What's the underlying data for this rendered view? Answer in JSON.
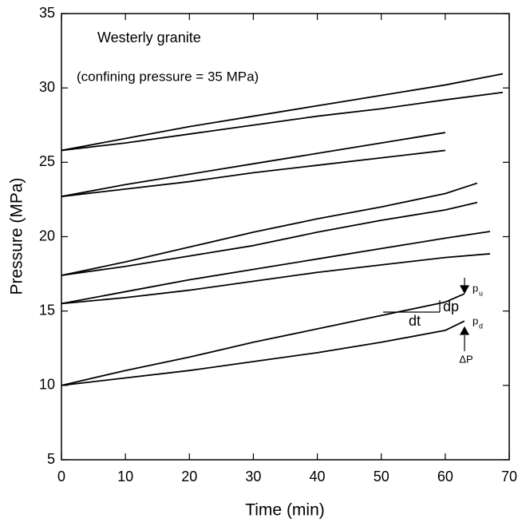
{
  "chart_data": {
    "type": "line",
    "title": "Westerly granite",
    "subtitle": "(confining pressure = 35 MPa)",
    "xlabel": "Time (min)",
    "ylabel": "Pressure (MPa)",
    "xlim": [
      0,
      70
    ],
    "xticks": [
      0,
      10,
      20,
      30,
      40,
      50,
      60,
      70
    ],
    "ylim": [
      5,
      35
    ],
    "yticks": [
      5,
      10,
      15,
      20,
      25,
      30,
      35
    ],
    "annotations": [
      "dp",
      "dt",
      "p",
      "u",
      "p",
      "d",
      "ΔP"
    ],
    "series": [
      {
        "color": "#000000",
        "x": [
          0,
          10,
          20,
          30,
          40,
          50,
          60,
          69
        ],
        "values": [
          25.8,
          26.6,
          27.4,
          28.1,
          28.8,
          29.5,
          30.2,
          30.95
        ]
      },
      {
        "color": "#000000",
        "x": [
          0,
          10,
          20,
          30,
          40,
          50,
          60,
          69
        ],
        "values": [
          25.8,
          26.3,
          26.9,
          27.5,
          28.1,
          28.6,
          29.2,
          29.7
        ]
      },
      {
        "color": "#000000",
        "x": [
          0,
          10,
          20,
          30,
          40,
          50,
          60
        ],
        "values": [
          22.7,
          23.5,
          24.2,
          24.9,
          25.6,
          26.3,
          27.0
        ]
      },
      {
        "color": "#000000",
        "x": [
          0,
          10,
          20,
          30,
          40,
          50,
          60
        ],
        "values": [
          22.7,
          23.2,
          23.7,
          24.3,
          24.8,
          25.3,
          25.8
        ]
      },
      {
        "color": "#000000",
        "x": [
          0,
          10,
          20,
          30,
          40,
          50,
          60,
          65
        ],
        "values": [
          17.4,
          18.3,
          19.3,
          20.3,
          21.2,
          22.0,
          22.9,
          23.6
        ]
      },
      {
        "color": "#000000",
        "x": [
          0,
          10,
          20,
          30,
          40,
          50,
          60,
          65
        ],
        "values": [
          17.4,
          18.0,
          18.7,
          19.4,
          20.3,
          21.1,
          21.8,
          22.3
        ]
      },
      {
        "color": "#000000",
        "x": [
          0,
          10,
          20,
          30,
          40,
          50,
          60,
          67
        ],
        "values": [
          15.5,
          16.3,
          17.1,
          17.8,
          18.5,
          19.2,
          19.9,
          20.35
        ]
      },
      {
        "color": "#000000",
        "x": [
          0,
          10,
          20,
          30,
          40,
          50,
          60,
          67
        ],
        "values": [
          15.5,
          15.9,
          16.4,
          17.0,
          17.6,
          18.1,
          18.6,
          18.85
        ]
      },
      {
        "color": "#000000",
        "x": [
          0,
          10,
          20,
          30,
          40,
          50,
          60,
          63
        ],
        "values": [
          10.0,
          11.0,
          11.9,
          12.9,
          13.8,
          14.7,
          15.6,
          16.16
        ]
      },
      {
        "color": "#000000",
        "x": [
          0,
          10,
          20,
          30,
          40,
          50,
          60,
          63
        ],
        "values": [
          10.0,
          10.5,
          11.0,
          11.6,
          12.2,
          12.9,
          13.7,
          14.33
        ]
      }
    ]
  }
}
